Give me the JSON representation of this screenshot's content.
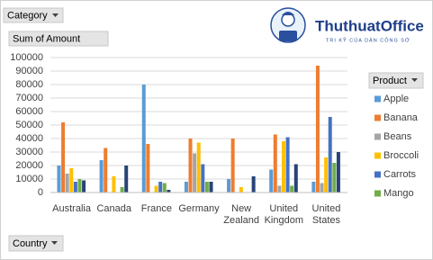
{
  "chart_data": {
    "type": "bar",
    "filter_field": "Category",
    "y_label": "Sum of Amount",
    "legend_title": "Product",
    "x_field": "Country",
    "categories": [
      "Australia",
      "Canada",
      "France",
      "Germany",
      "New Zealand",
      "United Kingdom",
      "United States"
    ],
    "series": [
      {
        "name": "Apple",
        "color": "#5b9bd5",
        "values": [
          20000,
          24000,
          80000,
          8000,
          10000,
          17000,
          8000
        ]
      },
      {
        "name": "Banana",
        "color": "#ed7d31",
        "values": [
          52000,
          33000,
          36000,
          40000,
          40000,
          43000,
          94000
        ]
      },
      {
        "name": "Beans",
        "color": "#a5a5a5",
        "values": [
          14000,
          null,
          null,
          29000,
          null,
          5000,
          7000
        ]
      },
      {
        "name": "Broccoli",
        "color": "#ffc000",
        "values": [
          18000,
          12000,
          5000,
          37000,
          4000,
          38000,
          26000
        ]
      },
      {
        "name": "Carrots",
        "color": "#4472c4",
        "values": [
          8000,
          null,
          8000,
          21000,
          null,
          41000,
          56000
        ]
      },
      {
        "name": "Mango",
        "color": "#70ad47",
        "values": [
          10000,
          4000,
          7000,
          8000,
          null,
          5000,
          22000
        ]
      },
      {
        "color": "#264478",
        "values": [
          9000,
          20000,
          2000,
          8000,
          12000,
          21000,
          30000
        ]
      }
    ],
    "ylim": [
      0,
      100000
    ],
    "yticks": [
      0,
      10000,
      20000,
      30000,
      40000,
      50000,
      60000,
      70000,
      80000,
      90000,
      100000
    ],
    "grid": true
  },
  "logo": {
    "title": "ThuthuatOffice",
    "tagline": "TRI KỸ CỦA DÂN CÔNG SỞ"
  }
}
